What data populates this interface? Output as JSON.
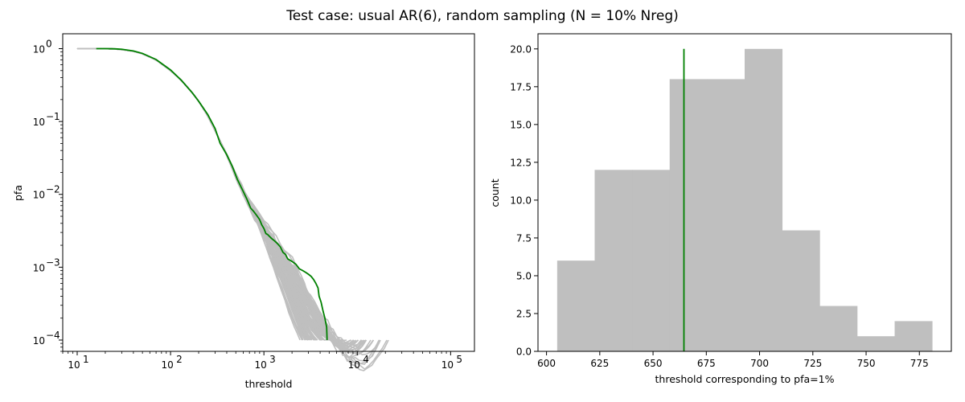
{
  "figure": {
    "title": "Test case: usual AR(6), random sampling (N = 10% Nreg)"
  },
  "colors": {
    "background": "#ffffff",
    "gray_curves": "#bfbfbf",
    "highlight": "#008000",
    "bars": "#bfbfbf",
    "axes": "#000000"
  },
  "chart_data": [
    {
      "type": "line",
      "xscale": "log",
      "yscale": "log",
      "xlabel": "threshold",
      "ylabel": "pfa",
      "xlim": [
        7,
        180000
      ],
      "ylim": [
        7e-05,
        1.6
      ],
      "xticks": [
        {
          "value": 10,
          "base": "10",
          "exp": "1"
        },
        {
          "value": 100,
          "base": "10",
          "exp": "2"
        },
        {
          "value": 1000,
          "base": "10",
          "exp": "3"
        },
        {
          "value": 10000,
          "base": "10",
          "exp": "4"
        },
        {
          "value": 100000,
          "base": "10",
          "exp": "5"
        }
      ],
      "yticks": [
        {
          "value": 1,
          "base": "10",
          "exp": "0"
        },
        {
          "value": 0.1,
          "base": "10",
          "exp": "−1"
        },
        {
          "value": 0.01,
          "base": "10",
          "exp": "−2"
        },
        {
          "value": 0.001,
          "base": "10",
          "exp": "−3"
        },
        {
          "value": 0.0001,
          "base": "10",
          "exp": "−4"
        }
      ],
      "gray_series_description": "≈100 gray simulated pfa curves following the same shape, spreading out below pfa 1e-3 and ending between threshold ≈2500 and ≈22000",
      "gray_tail_end_thresholds": [
        2500,
        2700,
        2900,
        3000,
        3100,
        3200,
        3300,
        3400,
        3500,
        3600,
        3700,
        3800,
        3900,
        4000,
        4100,
        4200,
        4400,
        4600,
        4800,
        5000,
        5300,
        5600,
        5900,
        6200,
        6500,
        6900,
        7300,
        7700,
        8200,
        8700,
        9200,
        9800,
        10500,
        11000,
        11500,
        12000,
        13000,
        14000,
        16000,
        18000,
        22000
      ],
      "base_curve": {
        "x": [
          10,
          16,
          20,
          25,
          30,
          40,
          50,
          70,
          100,
          130,
          170,
          200,
          250,
          300,
          350,
          400,
          500,
          600,
          700,
          800,
          900,
          1000,
          1200,
          1500,
          2000,
          2500,
          3000
        ],
        "y": [
          1.0,
          1.0,
          0.999,
          0.99,
          0.97,
          0.92,
          0.85,
          0.7,
          0.5,
          0.37,
          0.25,
          0.19,
          0.12,
          0.075,
          0.05,
          0.035,
          0.018,
          0.011,
          0.0075,
          0.0055,
          0.0043,
          0.0034,
          0.0024,
          0.0016,
          0.00095,
          0.0006,
          0.0004
        ]
      },
      "series": [
        {
          "role": "highlight",
          "x": [
            16,
            20,
            25,
            30,
            40,
            50,
            70,
            100,
            130,
            170,
            200,
            250,
            300,
            340,
            400,
            460,
            520,
            600,
            660,
            720,
            780,
            850,
            900,
            950,
            1000,
            1050,
            1100,
            1200,
            1300,
            1400,
            1500,
            1600,
            1700,
            1800,
            2000,
            2200,
            2400,
            2600,
            2800,
            3000,
            3200,
            3400,
            3600,
            3800,
            3900,
            4100,
            4300,
            4500,
            4700,
            4750
          ],
          "y": [
            1.0,
            1.0,
            0.995,
            0.98,
            0.93,
            0.86,
            0.71,
            0.51,
            0.37,
            0.25,
            0.19,
            0.125,
            0.08,
            0.05,
            0.035,
            0.024,
            0.016,
            0.011,
            0.0085,
            0.0065,
            0.0058,
            0.005,
            0.0045,
            0.0038,
            0.0034,
            0.0029,
            0.0028,
            0.0025,
            0.0023,
            0.0021,
            0.0019,
            0.0016,
            0.0015,
            0.0013,
            0.0012,
            0.0011,
            0.00095,
            0.0009,
            0.00085,
            0.0008,
            0.00075,
            0.00068,
            0.0006,
            0.00052,
            0.0004,
            0.00033,
            0.00025,
            0.0002,
            0.00015,
            0.0001
          ]
        }
      ]
    },
    {
      "type": "bar",
      "subtype": "histogram",
      "xlabel": "threshold corresponding to pfa=1%",
      "ylabel": "count",
      "xlim": [
        596,
        790
      ],
      "ylim": [
        0,
        21
      ],
      "xticks": [
        600,
        625,
        650,
        675,
        700,
        725,
        750,
        775
      ],
      "ytick_labels": [
        "0.0",
        "2.5",
        "5.0",
        "7.5",
        "10.0",
        "12.5",
        "15.0",
        "17.5",
        "20.0"
      ],
      "bin_edges": [
        605,
        622.6,
        640.2,
        657.8,
        675.4,
        693.0,
        710.6,
        728.2,
        745.8,
        763.4,
        781.0
      ],
      "values": [
        6,
        12,
        12,
        18,
        18,
        20,
        8,
        3,
        1,
        2
      ],
      "vline": {
        "x": 664.5,
        "y0": 0,
        "y1": 20
      }
    }
  ]
}
